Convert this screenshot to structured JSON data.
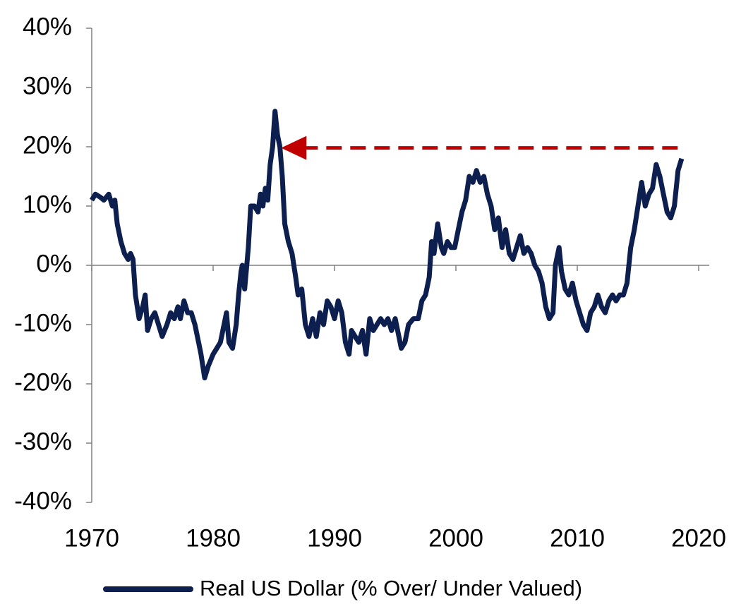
{
  "chart_data": {
    "type": "line",
    "x": [
      1970.0,
      1970.3,
      1970.7,
      1971.0,
      1971.4,
      1971.7,
      1971.9,
      1972.1,
      1972.4,
      1972.7,
      1973.0,
      1973.2,
      1973.4,
      1973.6,
      1973.9,
      1974.2,
      1974.4,
      1974.6,
      1974.9,
      1975.2,
      1975.5,
      1975.8,
      1976.2,
      1976.5,
      1976.8,
      1977.1,
      1977.3,
      1977.6,
      1977.9,
      1978.2,
      1978.5,
      1978.8,
      1979.0,
      1979.3,
      1979.6,
      1980.0,
      1980.3,
      1980.6,
      1980.9,
      1981.1,
      1981.3,
      1981.6,
      1981.9,
      1982.1,
      1982.3,
      1982.4,
      1982.6,
      1982.9,
      1983.1,
      1983.4,
      1983.7,
      1983.9,
      1984.1,
      1984.3,
      1984.5,
      1984.7,
      1984.9,
      1985.1,
      1985.3,
      1985.5,
      1985.7,
      1985.9,
      1986.2,
      1986.5,
      1986.8,
      1987.0,
      1987.3,
      1987.6,
      1987.9,
      1988.2,
      1988.5,
      1988.8,
      1989.1,
      1989.4,
      1989.7,
      1990.0,
      1990.3,
      1990.6,
      1990.9,
      1991.2,
      1991.4,
      1991.7,
      1992.0,
      1992.3,
      1992.6,
      1992.9,
      1993.2,
      1993.5,
      1993.8,
      1994.1,
      1994.4,
      1994.7,
      1995.0,
      1995.3,
      1995.5,
      1995.8,
      1996.1,
      1996.5,
      1996.9,
      1997.2,
      1997.5,
      1997.8,
      1998.0,
      1998.2,
      1998.5,
      1998.8,
      1999.0,
      1999.3,
      1999.6,
      1999.9,
      2000.2,
      2000.5,
      2000.8,
      2001.1,
      2001.4,
      2001.7,
      2002.0,
      2002.3,
      2002.6,
      2002.9,
      2003.2,
      2003.5,
      2003.8,
      2004.1,
      2004.4,
      2004.7,
      2005.0,
      2005.3,
      2005.6,
      2005.9,
      2006.2,
      2006.5,
      2006.8,
      2007.1,
      2007.4,
      2007.7,
      2008.0,
      2008.2,
      2008.5,
      2008.7,
      2009.0,
      2009.3,
      2009.6,
      2009.9,
      2010.2,
      2010.5,
      2010.8,
      2011.1,
      2011.4,
      2011.7,
      2012.0,
      2012.3,
      2012.6,
      2012.9,
      2013.2,
      2013.5,
      2013.8,
      2014.1,
      2014.4,
      2014.7,
      2015.0,
      2015.3,
      2015.6,
      2015.9,
      2016.2,
      2016.5,
      2016.8,
      2017.1,
      2017.4,
      2017.7,
      2018.0,
      2018.3,
      2018.6
    ],
    "series": [
      {
        "name": "Real US Dollar (% Over/ Under Valued)",
        "color": "#0c1f4f",
        "values": [
          11,
          12,
          11.5,
          11,
          12,
          10,
          11,
          7,
          4,
          2,
          1,
          2,
          1,
          -5,
          -9,
          -7,
          -5,
          -11,
          -9,
          -8,
          -10,
          -12,
          -10,
          -8,
          -9,
          -7,
          -9,
          -6,
          -8,
          -8,
          -10,
          -13,
          -15,
          -19,
          -17,
          -15,
          -14,
          -13,
          -10,
          -8,
          -13,
          -14,
          -10,
          -5,
          -1,
          0,
          -4,
          3,
          10,
          10,
          9,
          12,
          10,
          13,
          11,
          17,
          20,
          26,
          22,
          20,
          15,
          7,
          4,
          2,
          -2,
          -5,
          -4,
          -10,
          -12,
          -9,
          -12,
          -8,
          -10,
          -6,
          -7,
          -9,
          -6,
          -8,
          -13,
          -15,
          -11,
          -12,
          -13,
          -11,
          -15,
          -9,
          -11,
          -10,
          -9,
          -10,
          -9,
          -11,
          -9,
          -12,
          -14,
          -13,
          -10,
          -9,
          -9,
          -6,
          -5,
          -2,
          4,
          2,
          7,
          3,
          2,
          4,
          3,
          3,
          6,
          9,
          11,
          15,
          14,
          16,
          14,
          15,
          12,
          10,
          6,
          8,
          3,
          6,
          2,
          1,
          3,
          5,
          2,
          3,
          2,
          0,
          -1,
          -3,
          -7,
          -9,
          -8,
          0,
          3,
          -1,
          -4,
          -5,
          -3,
          -6,
          -8,
          -10,
          -11,
          -8,
          -7,
          -5,
          -7,
          -8,
          -6,
          -5,
          -6,
          -5,
          -5,
          -3,
          3,
          6,
          10,
          14,
          10,
          12,
          13,
          17,
          15,
          12,
          9,
          8,
          10,
          16,
          18
        ]
      }
    ],
    "reference_arrow": {
      "x_start": 1985.6,
      "x_end": 2018.7,
      "y": 19.8,
      "color": "#c00000"
    },
    "xlim": [
      1970,
      2020
    ],
    "xticks": [
      1970,
      1980,
      1990,
      2000,
      2010,
      2020
    ],
    "ylim": [
      -40,
      40
    ],
    "yticks": [
      {
        "value": -40,
        "label": "-40%"
      },
      {
        "value": -30,
        "label": "-30%"
      },
      {
        "value": -20,
        "label": "-20%"
      },
      {
        "value": -10,
        "label": "-10%"
      },
      {
        "value": 0,
        "label": "0%"
      },
      {
        "value": 10,
        "label": "10%"
      },
      {
        "value": 20,
        "label": "20%"
      },
      {
        "value": 30,
        "label": "30%"
      },
      {
        "value": 40,
        "label": "40%"
      }
    ],
    "legend": "bottom"
  }
}
